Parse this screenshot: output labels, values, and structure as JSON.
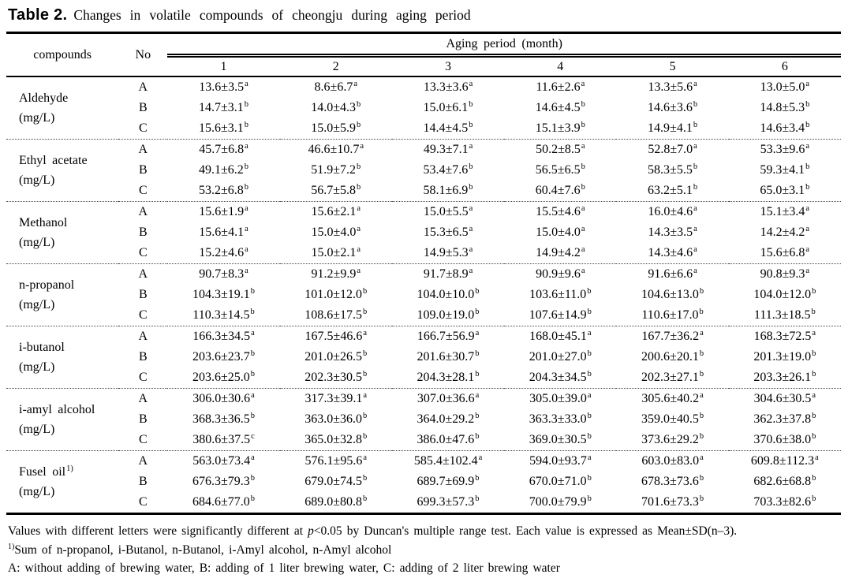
{
  "title": {
    "label": "Table 2.",
    "caption": "Changes in volatile compounds of cheongju during aging period"
  },
  "header": {
    "compounds": "compounds",
    "no": "No",
    "aging_period": "Aging period (month)",
    "months": [
      "1",
      "2",
      "3",
      "4",
      "5",
      "6"
    ]
  },
  "groups": [
    {
      "name": "Aldehyde",
      "name_sup": "",
      "unit": "(mg/L)",
      "rows": [
        {
          "no": "A",
          "cells": [
            [
              "13.6±3.5",
              "a"
            ],
            [
              "8.6±6.7",
              "a"
            ],
            [
              "13.3±3.6",
              "a"
            ],
            [
              "11.6±2.6",
              "a"
            ],
            [
              "13.3±5.6",
              "a"
            ],
            [
              "13.0±5.0",
              "a"
            ]
          ]
        },
        {
          "no": "B",
          "cells": [
            [
              "14.7±3.1",
              "b"
            ],
            [
              "14.0±4.3",
              "b"
            ],
            [
              "15.0±6.1",
              "b"
            ],
            [
              "14.6±4.5",
              "b"
            ],
            [
              "14.6±3.6",
              "b"
            ],
            [
              "14.8±5.3",
              "b"
            ]
          ]
        },
        {
          "no": "C",
          "cells": [
            [
              "15.6±3.1",
              "b"
            ],
            [
              "15.0±5.9",
              "b"
            ],
            [
              "14.4±4.5",
              "b"
            ],
            [
              "15.1±3.9",
              "b"
            ],
            [
              "14.9±4.1",
              "b"
            ],
            [
              "14.6±3.4",
              "b"
            ]
          ]
        }
      ]
    },
    {
      "name": "Ethyl acetate",
      "name_sup": "",
      "unit": "(mg/L)",
      "rows": [
        {
          "no": "A",
          "cells": [
            [
              "45.7±6.8",
              "a"
            ],
            [
              "46.6±10.7",
              "a"
            ],
            [
              "49.3±7.1",
              "a"
            ],
            [
              "50.2±8.5",
              "a"
            ],
            [
              "52.8±7.0",
              "a"
            ],
            [
              "53.3±9.6",
              "a"
            ]
          ]
        },
        {
          "no": "B",
          "cells": [
            [
              "49.1±6.2",
              "b"
            ],
            [
              "51.9±7.2",
              "b"
            ],
            [
              "53.4±7.6",
              "b"
            ],
            [
              "56.5±6.5",
              "b"
            ],
            [
              "58.3±5.5",
              "b"
            ],
            [
              "59.3±4.1",
              "b"
            ]
          ]
        },
        {
          "no": "C",
          "cells": [
            [
              "53.2±6.8",
              "b"
            ],
            [
              "56.7±5.8",
              "b"
            ],
            [
              "58.1±6.9",
              "b"
            ],
            [
              "60.4±7.6",
              "b"
            ],
            [
              "63.2±5.1",
              "b"
            ],
            [
              "65.0±3.1",
              "b"
            ]
          ]
        }
      ]
    },
    {
      "name": "Methanol",
      "name_sup": "",
      "unit": "(mg/L)",
      "rows": [
        {
          "no": "A",
          "cells": [
            [
              "15.6±1.9",
              "a"
            ],
            [
              "15.6±2.1",
              "a"
            ],
            [
              "15.0±5.5",
              "a"
            ],
            [
              "15.5±4.6",
              "a"
            ],
            [
              "16.0±4.6",
              "a"
            ],
            [
              "15.1±3.4",
              "a"
            ]
          ]
        },
        {
          "no": "B",
          "cells": [
            [
              "15.6±4.1",
              "a"
            ],
            [
              "15.0±4.0",
              "a"
            ],
            [
              "15.3±6.5",
              "a"
            ],
            [
              "15.0±4.0",
              "a"
            ],
            [
              "14.3±3.5",
              "a"
            ],
            [
              "14.2±4.2",
              "a"
            ]
          ]
        },
        {
          "no": "C",
          "cells": [
            [
              "15.2±4.6",
              "a"
            ],
            [
              "15.0±2.1",
              "a"
            ],
            [
              "14.9±5.3",
              "a"
            ],
            [
              "14.9±4.2",
              "a"
            ],
            [
              "14.3±4.6",
              "a"
            ],
            [
              "15.6±6.8",
              "a"
            ]
          ]
        }
      ]
    },
    {
      "name": "n-propanol",
      "name_sup": "",
      "unit": "(mg/L)",
      "rows": [
        {
          "no": "A",
          "cells": [
            [
              "90.7±8.3",
              "a"
            ],
            [
              "91.2±9.9",
              "a"
            ],
            [
              "91.7±8.9",
              "a"
            ],
            [
              "90.9±9.6",
              "a"
            ],
            [
              "91.6±6.6",
              "a"
            ],
            [
              "90.8±9.3",
              "a"
            ]
          ]
        },
        {
          "no": "B",
          "cells": [
            [
              "104.3±19.1",
              "b"
            ],
            [
              "101.0±12.0",
              "b"
            ],
            [
              "104.0±10.0",
              "b"
            ],
            [
              "103.6±11.0",
              "b"
            ],
            [
              "104.6±13.0",
              "b"
            ],
            [
              "104.0±12.0",
              "b"
            ]
          ]
        },
        {
          "no": "C",
          "cells": [
            [
              "110.3±14.5",
              "b"
            ],
            [
              "108.6±17.5",
              "b"
            ],
            [
              "109.0±19.0",
              "b"
            ],
            [
              "107.6±14.9",
              "b"
            ],
            [
              "110.6±17.0",
              "b"
            ],
            [
              "111.3±18.5",
              "b"
            ]
          ]
        }
      ]
    },
    {
      "name": "i-butanol",
      "name_sup": "",
      "unit": "(mg/L)",
      "rows": [
        {
          "no": "A",
          "cells": [
            [
              "166.3±34.5",
              "a"
            ],
            [
              "167.5±46.6",
              "a"
            ],
            [
              "166.7±56.9",
              "a"
            ],
            [
              "168.0±45.1",
              "a"
            ],
            [
              "167.7±36.2",
              "a"
            ],
            [
              "168.3±72.5",
              "a"
            ]
          ]
        },
        {
          "no": "B",
          "cells": [
            [
              "203.6±23.7",
              "b"
            ],
            [
              "201.0±26.5",
              "b"
            ],
            [
              "201.6±30.7",
              "b"
            ],
            [
              "201.0±27.0",
              "b"
            ],
            [
              "200.6±20.1",
              "b"
            ],
            [
              "201.3±19.0",
              "b"
            ]
          ]
        },
        {
          "no": "C",
          "cells": [
            [
              "203.6±25.0",
              "b"
            ],
            [
              "202.3±30.5",
              "b"
            ],
            [
              "204.3±28.1",
              "b"
            ],
            [
              "204.3±34.5",
              "b"
            ],
            [
              "202.3±27.1",
              "b"
            ],
            [
              "203.3±26.1",
              "b"
            ]
          ]
        }
      ]
    },
    {
      "name": "i-amyl alcohol",
      "name_sup": "",
      "unit": "(mg/L)",
      "rows": [
        {
          "no": "A",
          "cells": [
            [
              "306.0±30.6",
              "a"
            ],
            [
              "317.3±39.1",
              "a"
            ],
            [
              "307.0±36.6",
              "a"
            ],
            [
              "305.0±39.0",
              "a"
            ],
            [
              "305.6±40.2",
              "a"
            ],
            [
              "304.6±30.5",
              "a"
            ]
          ]
        },
        {
          "no": "B",
          "cells": [
            [
              "368.3±36.5",
              "b"
            ],
            [
              "363.0±36.0",
              "b"
            ],
            [
              "364.0±29.2",
              "b"
            ],
            [
              "363.3±33.0",
              "b"
            ],
            [
              "359.0±40.5",
              "b"
            ],
            [
              "362.3±37.8",
              "b"
            ]
          ]
        },
        {
          "no": "C",
          "cells": [
            [
              "380.6±37.5",
              "c"
            ],
            [
              "365.0±32.8",
              "b"
            ],
            [
              "386.0±47.6",
              "b"
            ],
            [
              "369.0±30.5",
              "b"
            ],
            [
              "373.6±29.2",
              "b"
            ],
            [
              "370.6±38.0",
              "b"
            ]
          ]
        }
      ]
    },
    {
      "name": "Fusel oil",
      "name_sup": "1)",
      "unit": "(mg/L)",
      "rows": [
        {
          "no": "A",
          "cells": [
            [
              "563.0±73.4",
              "a"
            ],
            [
              "576.1±95.6",
              "a"
            ],
            [
              "585.4±102.4",
              "a"
            ],
            [
              "594.0±93.7",
              "a"
            ],
            [
              "603.0±83.0",
              "a"
            ],
            [
              "609.8±112.3",
              "a"
            ]
          ]
        },
        {
          "no": "B",
          "cells": [
            [
              "676.3±79.3",
              "b"
            ],
            [
              "679.0±74.5",
              "b"
            ],
            [
              "689.7±69.9",
              "b"
            ],
            [
              "670.0±71.0",
              "b"
            ],
            [
              "678.3±73.6",
              "b"
            ],
            [
              "682.6±68.8",
              "b"
            ]
          ]
        },
        {
          "no": "C",
          "cells": [
            [
              "684.6±77.0",
              "b"
            ],
            [
              "689.0±80.8",
              "b"
            ],
            [
              "699.3±57.3",
              "b"
            ],
            [
              "700.0±79.9",
              "b"
            ],
            [
              "701.6±73.3",
              "b"
            ],
            [
              "703.3±82.6",
              "b"
            ]
          ]
        }
      ]
    }
  ],
  "footnotes": {
    "sig_pre": "Values with different letters were significantly different at ",
    "sig_p": "p",
    "sig_post": "<0.05 by Duncan's multiple range test. Each value is expressed as Mean±SD(n–3).",
    "fusel_sup": "1)",
    "fusel_text": "Sum of n-propanol, i-Butanol, n-Butanol, i-Amyl alcohol, n-Amyl alcohol",
    "abc_text": "A: without adding of brewing water, B: adding of 1 liter brewing water, C: adding of 2 liter brewing water"
  }
}
